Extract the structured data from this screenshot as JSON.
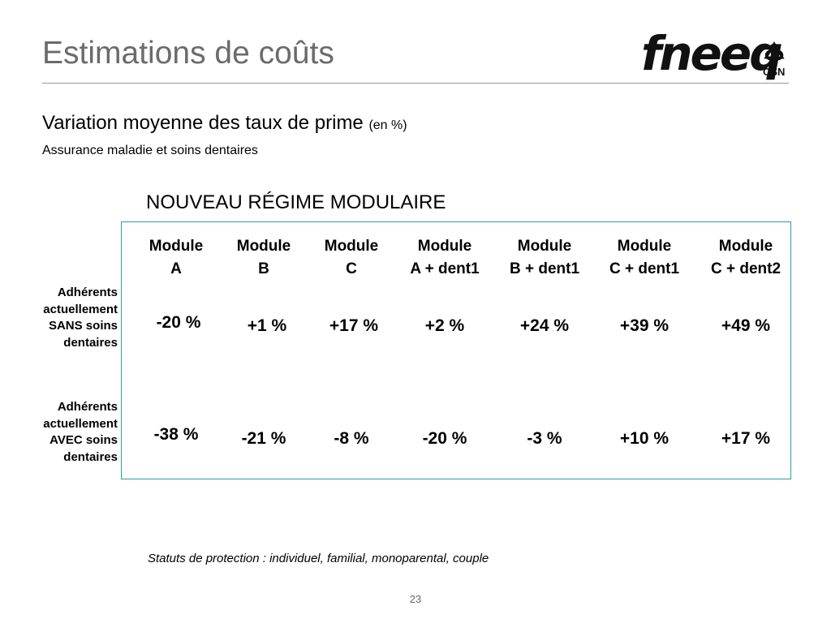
{
  "slide": {
    "title": "Estimations de coûts",
    "subtitle": "Variation moyenne des taux de prime",
    "subtitle_unit": "(en %)",
    "subtitle2": "Assurance maladie et soins dentaires",
    "regime_title": "NOUVEAU RÉGIME MODULAIRE",
    "footnote": "Statuts de protection : individuel, familial, monoparental, couple",
    "page_number": "23"
  },
  "logo": {
    "word": "fneeq",
    "sub": "CSN"
  },
  "table": {
    "columns": [
      {
        "line1": "Module",
        "line2": "A"
      },
      {
        "line1": "Module",
        "line2": "B"
      },
      {
        "line1": "Module",
        "line2": "C"
      },
      {
        "line1": "Module",
        "line2": "A + dent1"
      },
      {
        "line1": "Module",
        "line2": "B + dent1"
      },
      {
        "line1": "Module",
        "line2": "C + dent1"
      },
      {
        "line1": "Module",
        "line2": "C + dent2"
      }
    ],
    "rows": [
      {
        "label": [
          "Adhérents",
          "actuellement",
          "SANS soins",
          "dentaires"
        ],
        "values": [
          "-20 %",
          "+1 %",
          "+17 %",
          "+2 %",
          "+24 %",
          "+39 %",
          "+49 %"
        ]
      },
      {
        "label": [
          "Adhérents",
          "actuellement",
          "AVEC soins",
          "dentaires"
        ],
        "values": [
          "-38 %",
          "-21 %",
          "-8 %",
          "-20 %",
          "-3 %",
          "+10 %",
          "+17 %"
        ]
      }
    ]
  },
  "colors": {
    "title": "#6b6b6b",
    "box_border": "#2e9aa6",
    "rule": "#9a9a9a"
  }
}
